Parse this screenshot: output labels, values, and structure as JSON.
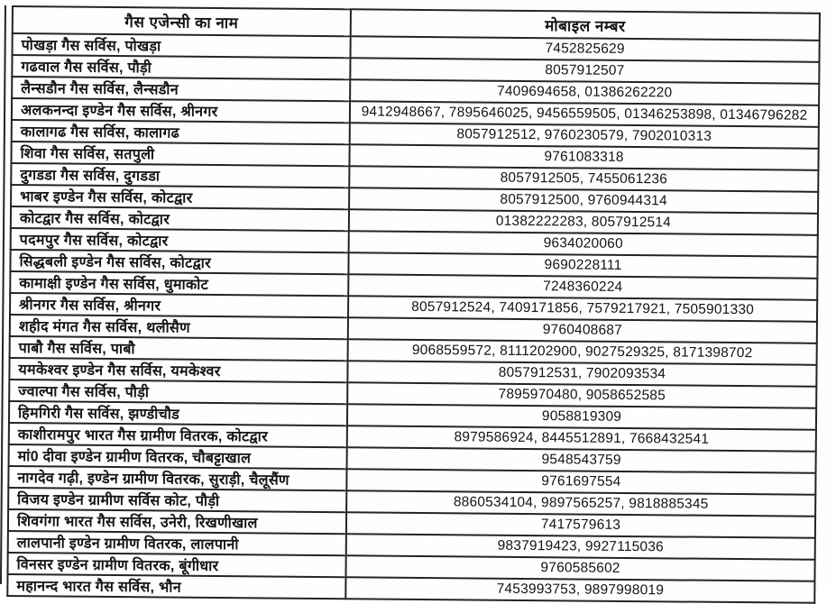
{
  "colors": {
    "border": "#242424",
    "text": "#141414",
    "background": "#fefefe"
  },
  "table": {
    "headers": [
      "गैस एजेन्सी का नाम",
      "मोबाइल नम्बर"
    ],
    "rows": [
      {
        "agency": "पोखड़ा गैस सर्विस, पोखड़ा",
        "mobile": "7452825629"
      },
      {
        "agency": "गढवाल गैस सर्विस, पौड़ी",
        "mobile": "8057912507"
      },
      {
        "agency": "लैन्सडौन गैस सर्विस, लैन्सडौन",
        "mobile": "7409694658, 01386262220"
      },
      {
        "agency": "अलकनन्दा इण्डेन गैस सर्विस, श्रीनगर",
        "mobile": "9412948667, 7895646025, 9456559505, 01346253898, 01346796282"
      },
      {
        "agency": "कालागढ गैस सर्विस, कालागढ",
        "mobile": "8057912512, 9760230579, 7902010313"
      },
      {
        "agency": "शिवा गैस सर्विस, सतपुली",
        "mobile": "9761083318"
      },
      {
        "agency": "दुगडडा गैस सर्विस, दुगडडा",
        "mobile": "8057912505, 7455061236"
      },
      {
        "agency": "भाबर इण्डेन गैस सर्विस, कोटद्वार",
        "mobile": "8057912500, 9760944314"
      },
      {
        "agency": "कोटद्वार गैस सर्विस, कोटद्वार",
        "mobile": "01382222283, 8057912514"
      },
      {
        "agency": "पदमपुर गैस सर्विस, कोटद्वार",
        "mobile": "9634020060"
      },
      {
        "agency": "सिद्धबली इण्डेन गैस सर्विस, कोटद्वार",
        "mobile": "9690228111"
      },
      {
        "agency": "कामाक्षी इण्डेन गैस सर्विस, धुमाकोट",
        "mobile": "7248360224"
      },
      {
        "agency": "श्रीनगर गैस सर्विस, श्रीनगर",
        "mobile": "8057912524, 7409171856, 7579217921, 7505901330"
      },
      {
        "agency": "शहीद मंगत गैस सर्विस, थलीसैण",
        "mobile": "9760408687"
      },
      {
        "agency": "पाबौ गैस सर्विस, पाबौ",
        "mobile": "9068559572, 8111202900, 9027529325, 8171398702"
      },
      {
        "agency": "यमकेश्वर इण्डेन गैस सर्विस, यमकेश्वर",
        "mobile": "8057912531, 7902093534"
      },
      {
        "agency": "ज्वाल्पा गैस सर्विस, पौड़ी",
        "mobile": "7895970480, 9058652585"
      },
      {
        "agency": "हिमगिरी गैस सर्विस, झण्डीचौड",
        "mobile": "9058819309"
      },
      {
        "agency": "काशीरामपुर भारत गैस ग्रामीण वितरक, कोटद्वार",
        "mobile": "8979586924, 8445512891, 7668432541"
      },
      {
        "agency": "मां0 दीवा इण्डेन ग्रामीण वितरक, चौबट्टाखाल",
        "mobile": "9548543759"
      },
      {
        "agency": "नागदेव गढ़ी, इण्डेन ग्रामीण वितरक, सुराड़ी, चैलूसैंण",
        "mobile": "9761697554"
      },
      {
        "agency": "विजय इण्डेन ग्रामीण सर्विस कोट, पौड़ी",
        "mobile": "8860534104, 9897565257, 9818885345"
      },
      {
        "agency": "शिवगंगा भारत गैस सर्विस, उनेरी, रिखणीखाल",
        "mobile": "7417579613"
      },
      {
        "agency": "लालपानी इण्डेन ग्रामीण वितरक, लालपानी",
        "mobile": "9837919423, 9927115036"
      },
      {
        "agency": "विनसर इण्डेन ग्रामीण वितरक, बूंगीधार",
        "mobile": "9760585602"
      },
      {
        "agency": "महानन्द भारत गैस सर्विस, भौन",
        "mobile": "7453993753, 9897998019"
      }
    ]
  }
}
